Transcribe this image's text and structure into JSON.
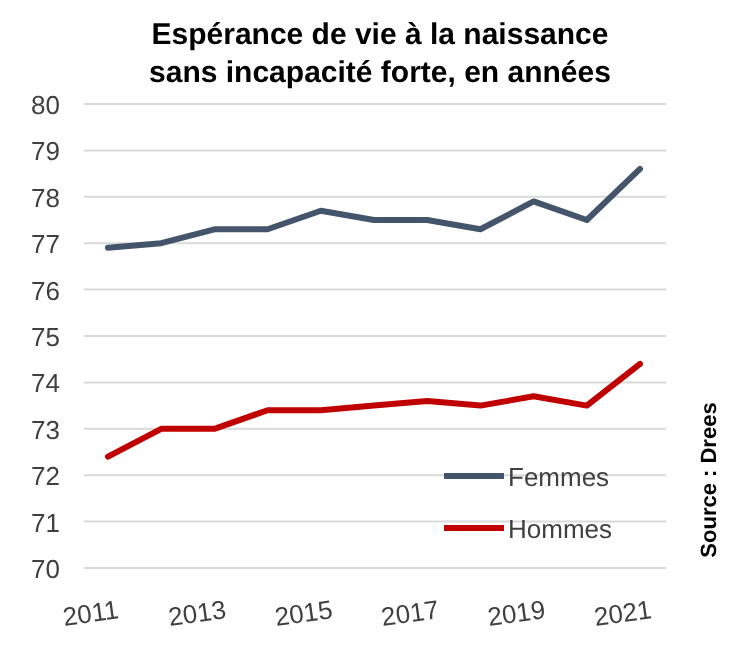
{
  "chart_data": {
    "type": "line",
    "title": "Espérance de vie à la naissance sans incapacité forte, en années",
    "categories": [
      "2011",
      null,
      "2013",
      null,
      "2015",
      null,
      "2017",
      null,
      "2019",
      null,
      "2021"
    ],
    "series": [
      {
        "name": "Femmes",
        "color": "#44546a",
        "values": [
          76.9,
          77.0,
          77.3,
          77.3,
          77.7,
          77.5,
          77.5,
          77.3,
          77.9,
          77.5,
          78.6
        ]
      },
      {
        "name": "Hommes",
        "color": "#c00000",
        "values": [
          72.4,
          73.0,
          73.0,
          73.4,
          73.4,
          73.5,
          73.6,
          73.5,
          73.7,
          73.5,
          74.4
        ]
      }
    ],
    "ylim": [
      70,
      80
    ],
    "yticks": [
      70,
      71,
      72,
      73,
      74,
      75,
      76,
      77,
      78,
      79,
      80
    ],
    "grid": "y",
    "legend": "bottom right",
    "line_style": "solid",
    "annotations": [
      "Source : Drees"
    ]
  }
}
